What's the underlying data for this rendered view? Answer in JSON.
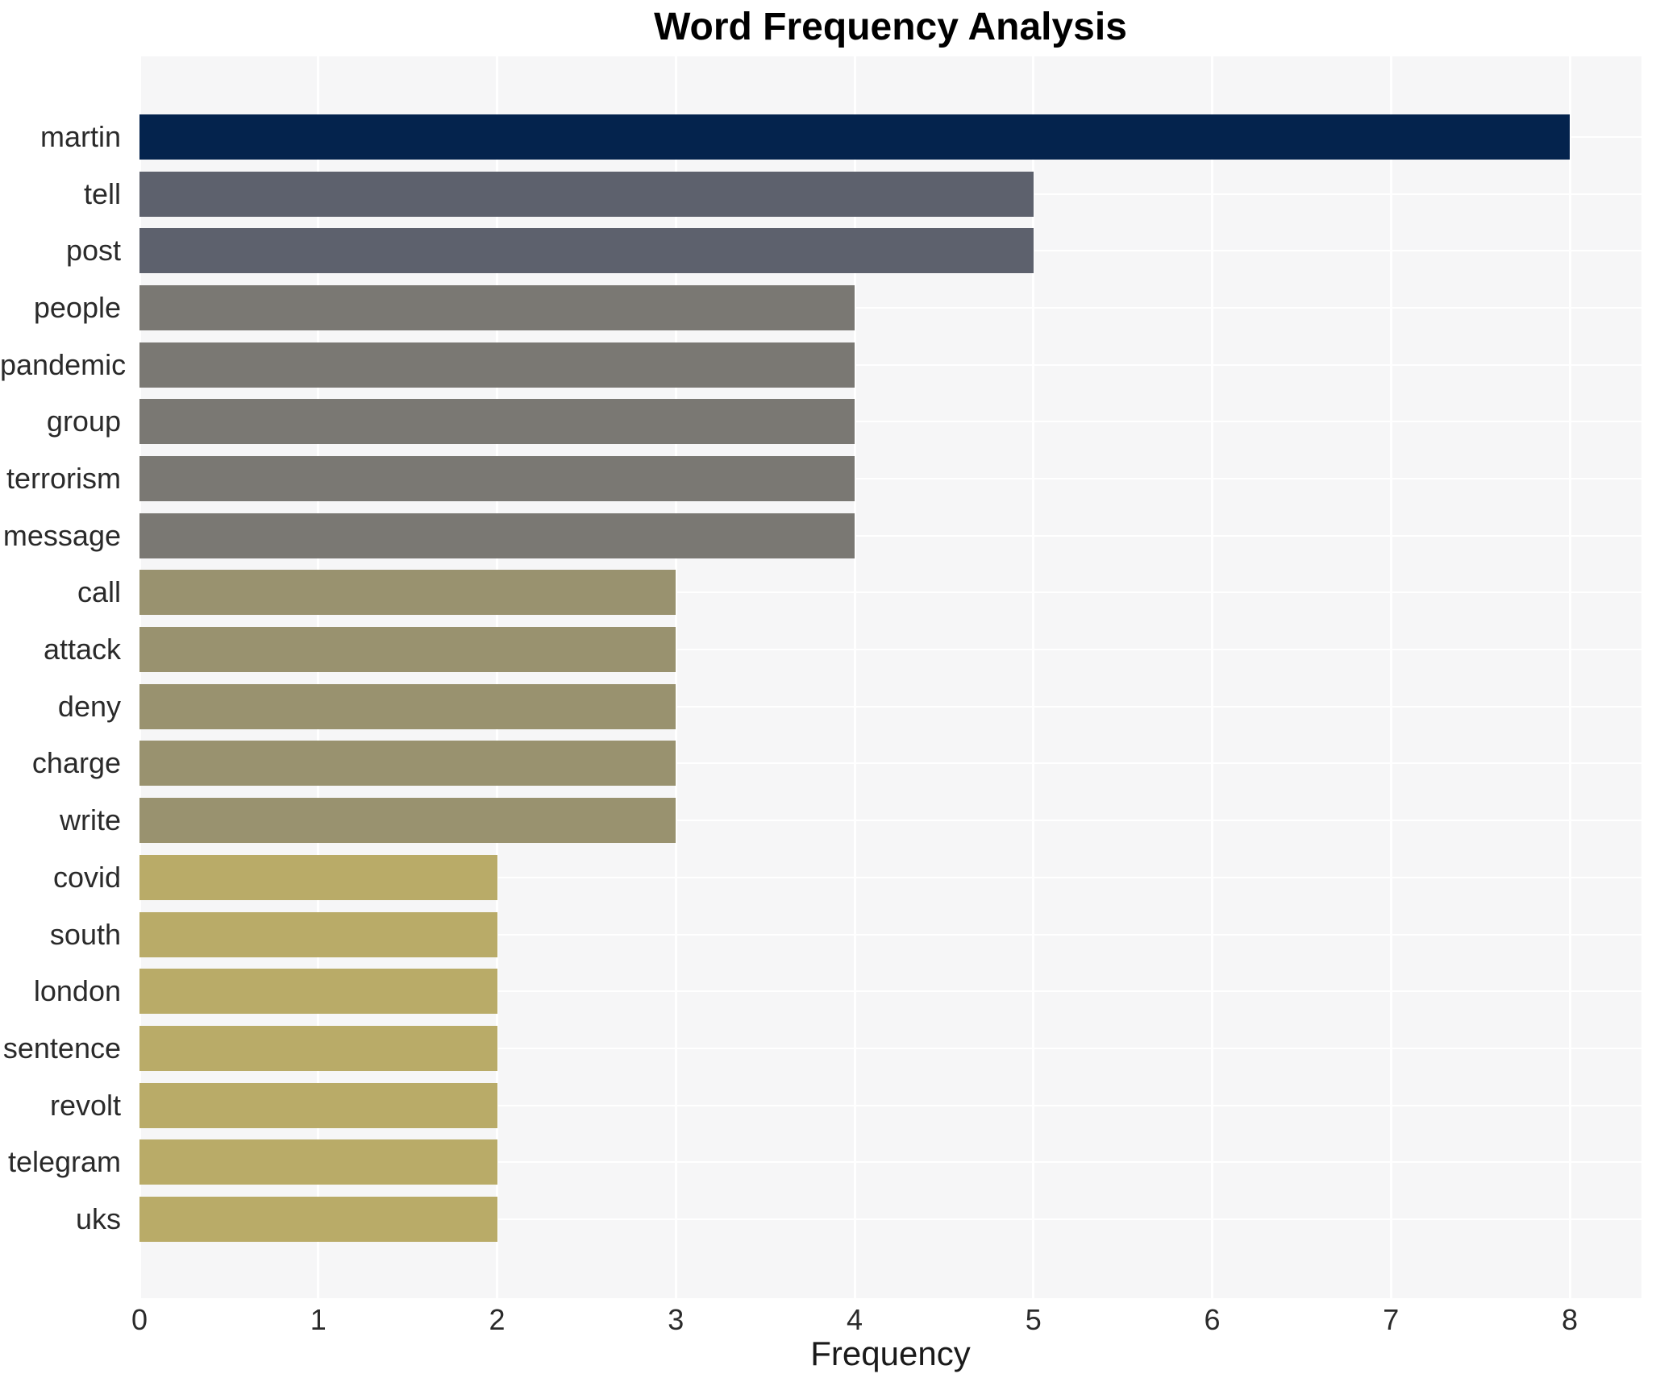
{
  "chart_data": {
    "type": "bar",
    "orientation": "horizontal",
    "title": "Word Frequency Analysis",
    "xlabel": "Frequency",
    "ylabel": "",
    "xlim": [
      0,
      8.4
    ],
    "x_ticks": [
      "0",
      "1",
      "2",
      "3",
      "4",
      "5",
      "6",
      "7",
      "8"
    ],
    "grid": true,
    "legend": "none",
    "categories": [
      "martin",
      "tell",
      "post",
      "people",
      "pandemic",
      "group",
      "terrorism",
      "message",
      "call",
      "attack",
      "deny",
      "charge",
      "write",
      "covid",
      "south",
      "london",
      "sentence",
      "revolt",
      "telegram",
      "uks"
    ],
    "values": [
      8,
      5,
      5,
      4,
      4,
      4,
      4,
      4,
      3,
      3,
      3,
      3,
      3,
      2,
      2,
      2,
      2,
      2,
      2,
      2
    ],
    "bar_colors": [
      "#04234d",
      "#5d616d",
      "#5d616d",
      "#7a7873",
      "#7a7873",
      "#7a7873",
      "#7a7873",
      "#7a7873",
      "#99926f",
      "#99926f",
      "#99926f",
      "#99926f",
      "#99926f",
      "#b9ab68",
      "#b9ab68",
      "#b9ab68",
      "#b9ab68",
      "#b9ab68",
      "#b9ab68",
      "#b9ab68"
    ],
    "value_color_map": {
      "8": "#04234d",
      "5": "#5d616d",
      "4": "#7a7873",
      "3": "#99926f",
      "2": "#b9ab68"
    },
    "palette": {
      "plot_background": "#f6f6f7",
      "gridline": "#ffffff",
      "tick_label_color": "#2a2a2a",
      "title_color": "#000000"
    }
  }
}
